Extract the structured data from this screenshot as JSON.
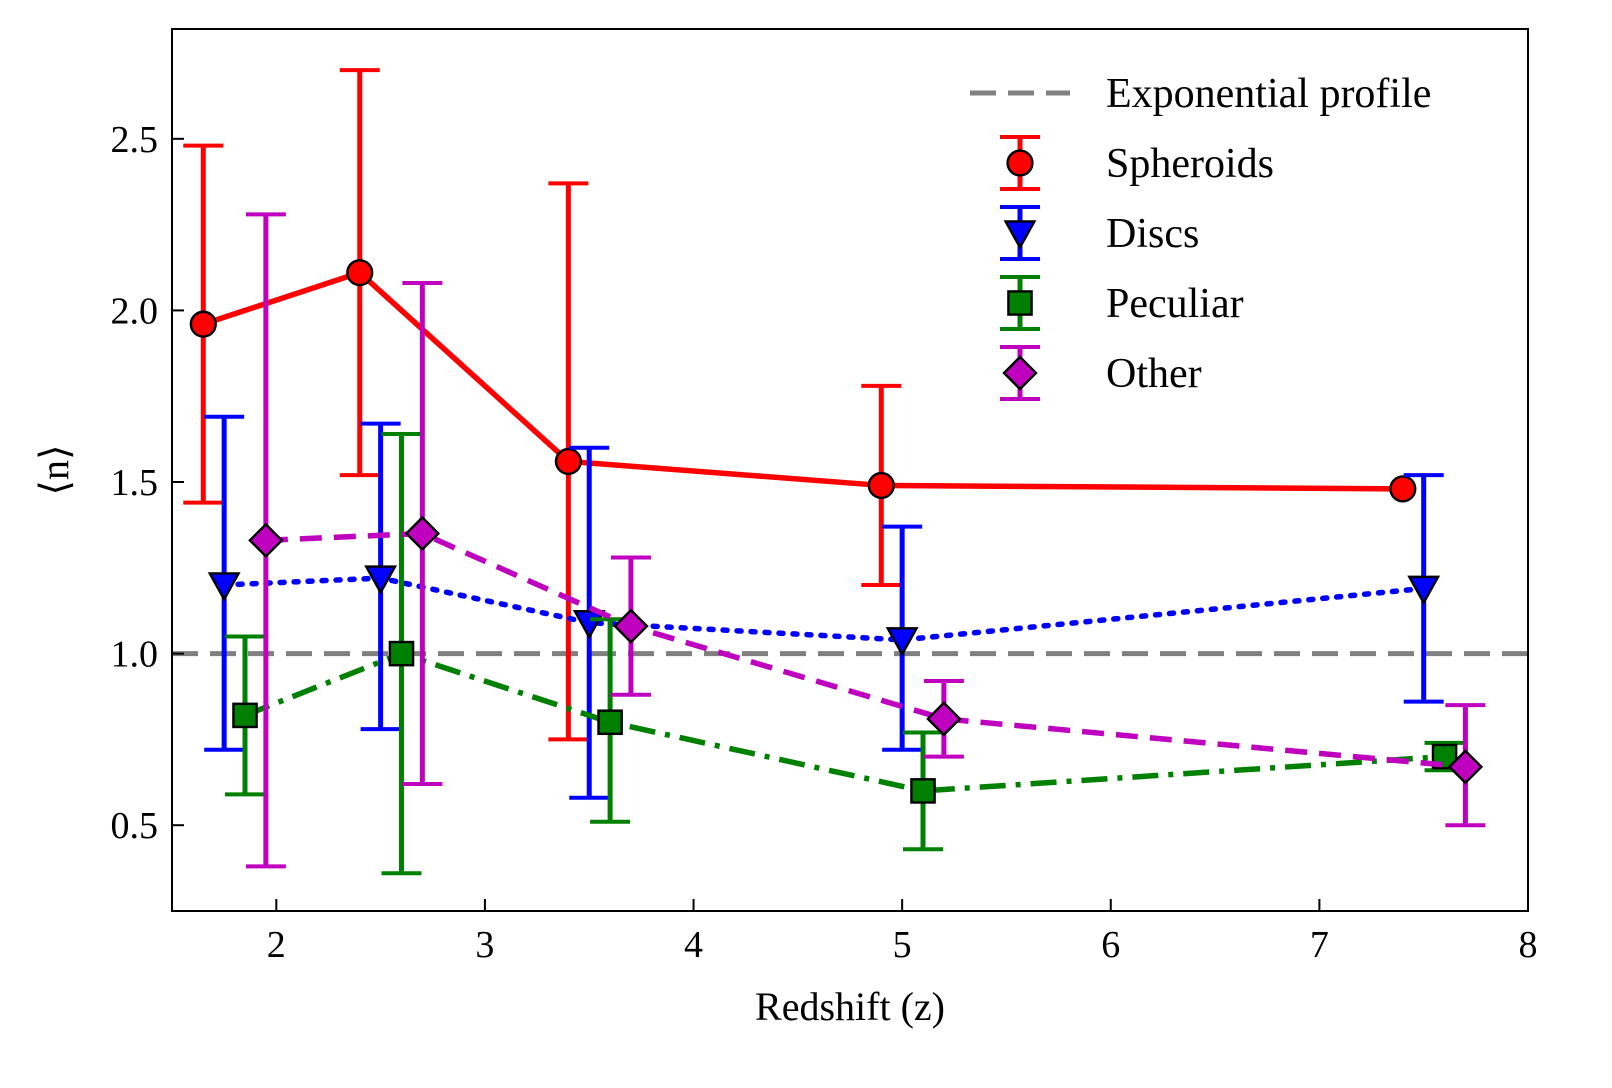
{
  "chart_data": {
    "type": "line",
    "title": "",
    "xlabel": "Redshift (z)",
    "ylabel": "⟨n⟩",
    "xlim": [
      1.5,
      8.0
    ],
    "ylim": [
      0.25,
      2.82
    ],
    "x_ticks": [
      2,
      3,
      4,
      5,
      6,
      7,
      8
    ],
    "x_tick_labels": [
      "2",
      "3",
      "4",
      "5",
      "6",
      "7",
      "8"
    ],
    "y_ticks": [
      0.5,
      1.0,
      1.5,
      2.0,
      2.5
    ],
    "y_tick_labels": [
      "0.5",
      "1.0",
      "1.5",
      "2.0",
      "2.5"
    ],
    "grid": false,
    "legend_position": "top-right",
    "reference_line": {
      "name": "Exponential profile",
      "y": 1.0,
      "color": "#808080",
      "style": "dashed"
    },
    "series": [
      {
        "name": "Spheroids",
        "color": "#ff0000",
        "marker": "circle",
        "line_style": "solid",
        "x": [
          1.65,
          2.4,
          3.4,
          4.9,
          7.4
        ],
        "y": [
          1.96,
          2.11,
          1.56,
          1.49,
          1.48
        ],
        "err_low": [
          1.44,
          1.52,
          0.75,
          1.2,
          1.48
        ],
        "err_high": [
          2.48,
          2.7,
          2.37,
          1.78,
          1.48
        ]
      },
      {
        "name": "Discs",
        "color": "#0000ff",
        "marker": "triangle-down",
        "line_style": "dotted",
        "x": [
          1.75,
          2.5,
          3.5,
          5.0,
          7.5
        ],
        "y": [
          1.2,
          1.22,
          1.09,
          1.04,
          1.19
        ],
        "err_low": [
          0.72,
          0.78,
          0.58,
          0.72,
          0.86
        ],
        "err_high": [
          1.69,
          1.67,
          1.6,
          1.37,
          1.52
        ]
      },
      {
        "name": "Peculiar",
        "color": "#008000",
        "marker": "square",
        "line_style": "dashdot",
        "x": [
          1.85,
          2.6,
          3.6,
          5.1,
          7.6
        ],
        "y": [
          0.82,
          1.0,
          0.8,
          0.6,
          0.7
        ],
        "err_low": [
          0.59,
          0.36,
          0.51,
          0.43,
          0.66
        ],
        "err_high": [
          1.05,
          1.64,
          1.1,
          0.77,
          0.74
        ]
      },
      {
        "name": "Other",
        "color": "#bf00bf",
        "marker": "diamond",
        "line_style": "dashed",
        "x": [
          1.95,
          2.7,
          3.7,
          5.2,
          7.7
        ],
        "y": [
          1.33,
          1.35,
          1.08,
          0.81,
          0.67
        ],
        "err_low": [
          0.38,
          0.62,
          0.88,
          0.7,
          0.5
        ],
        "err_high": [
          2.28,
          2.08,
          1.28,
          0.92,
          0.85
        ]
      }
    ]
  }
}
